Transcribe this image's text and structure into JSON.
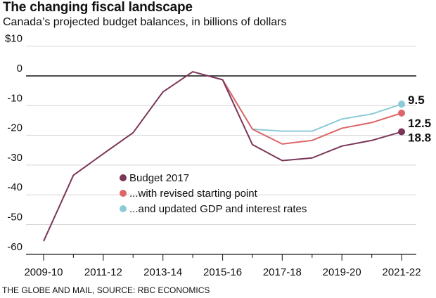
{
  "header": {
    "title": "The changing fiscal landscape",
    "subtitle": "Canada’s projected budget balances, in billions of dollars"
  },
  "footer": {
    "credit": "THE GLOBE AND MAIL, SOURCE: RBC ECONOMICS"
  },
  "chart_data": {
    "type": "line",
    "title": "The changing fiscal landscape",
    "subtitle": "Canada’s projected budget balances, in billions of dollars",
    "xlabel": "",
    "ylabel": "",
    "x": [
      "2009-10",
      "2010-11",
      "2011-12",
      "2012-13",
      "2013-14",
      "2014-15",
      "2015-16",
      "2016-17",
      "2017-18",
      "2018-19",
      "2019-20",
      "2020-21",
      "2021-22"
    ],
    "x_tick_labels": [
      "2009-10",
      "2011-12",
      "2013-14",
      "2015-16",
      "2017-18",
      "2019-20",
      "2021-22"
    ],
    "ylim": [
      -60,
      10
    ],
    "y_ticks": [
      10,
      0,
      -10,
      -20,
      -30,
      -40,
      -50,
      -60
    ],
    "y_tick_labels": [
      "$10",
      "0",
      "-10",
      "-20",
      "-30",
      "-40",
      "-50",
      "-60"
    ],
    "grid": true,
    "legend_position": "lower-center",
    "series": [
      {
        "name": "Budget 2017",
        "color": "#7b3558",
        "values": [
          -55.6,
          -33.4,
          -26.2,
          -19.1,
          -5.4,
          1.4,
          -1.3,
          -23.1,
          -28.5,
          -27.6,
          -23.6,
          -21.7,
          -18.8
        ],
        "end_label": "18.8"
      },
      {
        "name": "...with revised starting point",
        "color": "#dc6668",
        "values": [
          null,
          null,
          null,
          null,
          null,
          null,
          -1.3,
          -17.9,
          -22.9,
          -21.7,
          -17.6,
          -15.7,
          -12.5
        ],
        "end_label": "12.5"
      },
      {
        "name": "...and updated GDP and interest rates",
        "color": "#8ccbd6",
        "values": [
          null,
          null,
          null,
          null,
          null,
          null,
          -1.3,
          -17.9,
          -18.6,
          -18.6,
          -14.5,
          -12.8,
          -9.5
        ],
        "end_label": "9.5"
      }
    ]
  }
}
